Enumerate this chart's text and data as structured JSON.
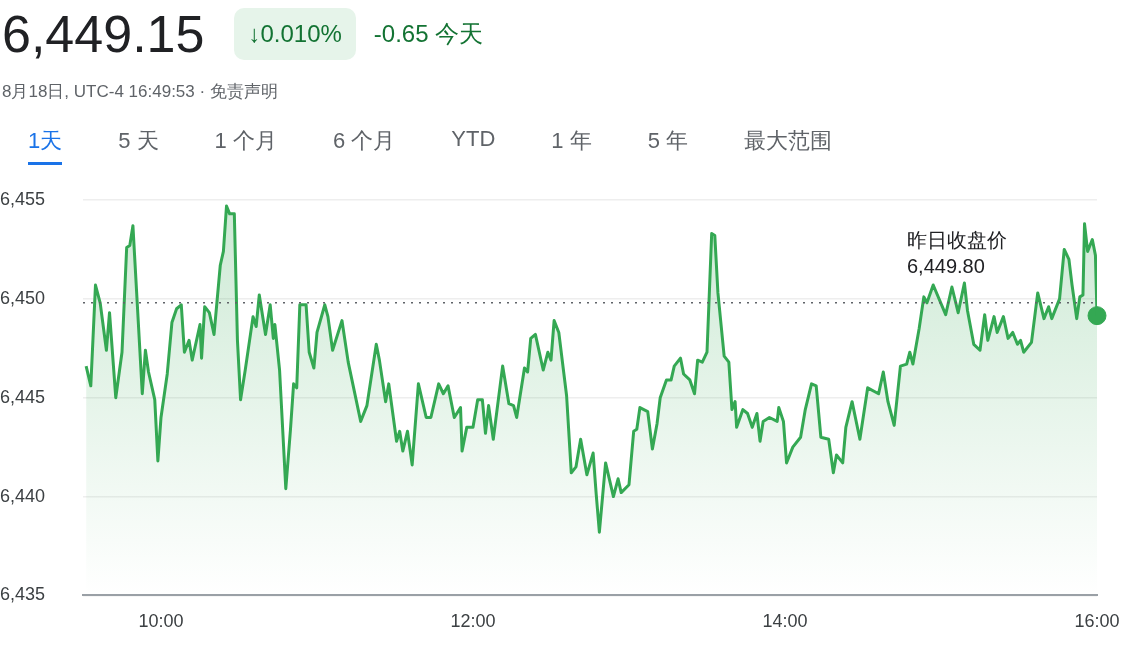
{
  "chart_data": {
    "type": "area",
    "title": "6,449.15",
    "subtitle": "8月18日, UTC-4 16:49:53 · 免责声明",
    "annotations": [
      "↓0.010%",
      "-0.65 今天",
      "1天",
      "5 天",
      "1 个月",
      "6 个月",
      "YTD",
      "1 年",
      "5 年",
      "最大范围"
    ],
    "series": [
      {
        "color": "#34a853",
        "x": [
          9.52,
          9.55,
          9.58,
          9.61,
          9.65,
          9.67,
          9.71,
          9.75,
          9.78,
          9.8,
          9.82,
          9.88,
          9.9,
          9.92,
          9.96,
          9.98,
          10.0,
          10.04,
          10.07,
          10.1,
          10.13,
          10.15,
          10.18,
          10.2,
          10.25,
          10.26,
          10.28,
          10.31,
          10.34,
          10.38,
          10.4,
          10.42,
          10.44,
          10.47,
          10.49,
          10.51,
          10.54,
          10.59,
          10.61,
          10.63,
          10.67,
          10.7,
          10.72,
          10.73,
          10.76,
          10.8,
          10.83,
          10.85,
          10.87,
          10.89,
          10.93,
          10.95,
          10.98,
          11.0,
          11.05,
          11.07,
          11.1,
          11.16,
          11.2,
          11.28,
          11.32,
          11.38,
          11.4,
          11.44,
          11.46,
          11.51,
          11.53,
          11.55,
          11.58,
          11.61,
          11.65,
          11.7,
          11.73,
          11.78,
          11.81,
          11.84,
          11.88,
          11.92,
          11.93,
          11.96,
          12.0,
          12.03,
          12.06,
          12.08,
          12.1,
          12.13,
          12.19,
          12.23,
          12.26,
          12.28,
          12.33,
          12.35,
          12.37,
          12.4,
          12.45,
          12.48,
          12.5,
          12.52,
          12.55,
          12.6,
          12.63,
          12.66,
          12.69,
          12.73,
          12.77,
          12.79,
          12.81,
          12.85,
          12.9,
          12.93,
          12.95,
          13.0,
          13.03,
          13.05,
          13.07,
          13.12,
          13.15,
          13.18,
          13.2,
          13.24,
          13.27,
          13.29,
          13.33,
          13.35,
          13.39,
          13.42,
          13.44,
          13.47,
          13.5,
          13.53,
          13.55,
          13.57,
          13.61,
          13.64,
          13.66,
          13.68,
          13.69,
          13.73,
          13.76,
          13.79,
          13.82,
          13.84,
          13.86,
          13.9,
          13.95,
          13.96,
          13.99,
          14.01,
          14.05,
          14.1,
          14.13,
          14.17,
          14.2,
          14.23,
          14.28,
          14.31,
          14.33,
          14.37,
          14.39,
          14.43,
          14.48,
          14.53,
          14.6,
          14.63,
          14.66,
          14.7,
          14.74,
          14.78,
          14.8,
          14.82,
          14.86,
          14.89,
          14.91,
          14.95,
          15.03,
          15.07,
          15.11,
          15.15,
          15.17,
          15.21,
          15.25,
          15.28,
          15.3,
          15.34,
          15.36,
          15.4,
          15.43,
          15.46,
          15.49,
          15.51,
          15.53,
          15.58,
          15.62,
          15.66,
          15.69,
          15.71,
          15.76,
          15.79,
          15.82,
          15.84,
          15.87,
          15.89,
          15.91,
          15.92,
          15.94,
          15.97,
          15.99,
          16.0
        ],
        "values": [
          6446.6,
          6445.6,
          6450.7,
          6449.8,
          6447.4,
          6449.3,
          6445.0,
          6447.3,
          6452.6,
          6452.7,
          6453.7,
          6445.2,
          6447.4,
          6446.3,
          6444.9,
          6441.8,
          6444.0,
          6446.2,
          6448.8,
          6449.5,
          6449.7,
          6447.3,
          6447.9,
          6446.9,
          6448.7,
          6447.0,
          6449.6,
          6449.3,
          6448.2,
          6451.7,
          6452.4,
          6454.7,
          6454.3,
          6454.3,
          6447.9,
          6444.9,
          6446.4,
          6449.1,
          6448.6,
          6450.2,
          6448.2,
          6449.7,
          6448.0,
          6448.7,
          6446.4,
          6440.4,
          6443.4,
          6445.7,
          6445.5,
          6449.7,
          6449.7,
          6447.3,
          6446.5,
          6448.3,
          6449.7,
          6449.1,
          6447.4,
          6448.9,
          6446.8,
          6443.8,
          6444.6,
          6447.7,
          6446.9,
          6444.8,
          6445.7,
          6442.8,
          6443.3,
          6442.3,
          6443.3,
          6441.6,
          6445.7,
          6444.0,
          6444.0,
          6445.7,
          6445.2,
          6445.6,
          6444.0,
          6444.5,
          6442.3,
          6443.5,
          6443.5,
          6444.9,
          6444.9,
          6443.2,
          6444.6,
          6442.9,
          6446.6,
          6444.7,
          6444.6,
          6444.0,
          6446.5,
          6446.3,
          6448.0,
          6448.2,
          6446.4,
          6447.3,
          6446.9,
          6448.9,
          6448.3,
          6445.1,
          6441.2,
          6441.5,
          6442.9,
          6441.1,
          6442.2,
          6440.1,
          6438.2,
          6441.7,
          6440.0,
          6440.9,
          6440.2,
          6440.6,
          6443.3,
          6443.4,
          6444.5,
          6444.3,
          6442.4,
          6443.7,
          6445.0,
          6445.9,
          6445.9,
          6446.6,
          6447.0,
          6446.2,
          6445.9,
          6445.2,
          6446.9,
          6446.8,
          6447.3,
          6453.3,
          6453.2,
          6450.3,
          6447.1,
          6446.8,
          6444.4,
          6444.8,
          6443.5,
          6444.4,
          6444.2,
          6443.5,
          6444.2,
          6442.8,
          6443.8,
          6444.0,
          6443.8,
          6444.5,
          6443.8,
          6441.7,
          6442.5,
          6443.0,
          6444.4,
          6445.7,
          6445.6,
          6443.0,
          6442.9,
          6441.2,
          6442.1,
          6441.7,
          6443.5,
          6444.8,
          6442.9,
          6445.5,
          6445.2,
          6446.3,
          6444.8,
          6443.6,
          6446.6,
          6446.7,
          6447.3,
          6446.7,
          6448.5,
          6450.1,
          6449.8,
          6450.7,
          6449.2,
          6450.6,
          6449.3,
          6450.8,
          6449.4,
          6447.7,
          6447.4,
          6449.2,
          6447.9,
          6449.1,
          6448.3,
          6449.1,
          6448.0,
          6448.3,
          6447.7,
          6447.9,
          6447.3,
          6447.8,
          6450.3,
          6449.0,
          6449.6,
          6449.0,
          6450.0,
          6452.5,
          6452.0,
          6450.7,
          6449.0,
          6450.1,
          6450.2,
          6453.8,
          6452.4,
          6453.0,
          6452.2,
          6449.15
        ]
      },
      {
        "type": "scatter",
        "marker": "circle",
        "color": "#34a853",
        "x": [
          16.0
        ],
        "values": [
          6449.15
        ]
      }
    ],
    "xlim": [
      9.5,
      16.0
    ],
    "xticks": [
      {
        "value": 10,
        "label": "10:00"
      },
      {
        "value": 12,
        "label": "12:00"
      },
      {
        "value": 14,
        "label": "14:00"
      },
      {
        "value": 16,
        "label": "16:00"
      }
    ],
    "ylim": [
      6435,
      6455
    ],
    "yticks": [
      {
        "value": 6435,
        "label": "6,435"
      },
      {
        "value": 6440,
        "label": "6,440"
      },
      {
        "value": 6445,
        "label": "6,445"
      },
      {
        "value": 6450,
        "label": "6,450"
      },
      {
        "value": 6455,
        "label": "6,455"
      }
    ],
    "ref_lines": [
      {
        "axis": "y",
        "value": 6449.8,
        "label": "昨日收盘价\n6,449.80",
        "color": "#5f6368",
        "line_style": "dotted"
      }
    ],
    "grid": "y",
    "legend": false,
    "marker": "none",
    "line_style": "solid"
  }
}
